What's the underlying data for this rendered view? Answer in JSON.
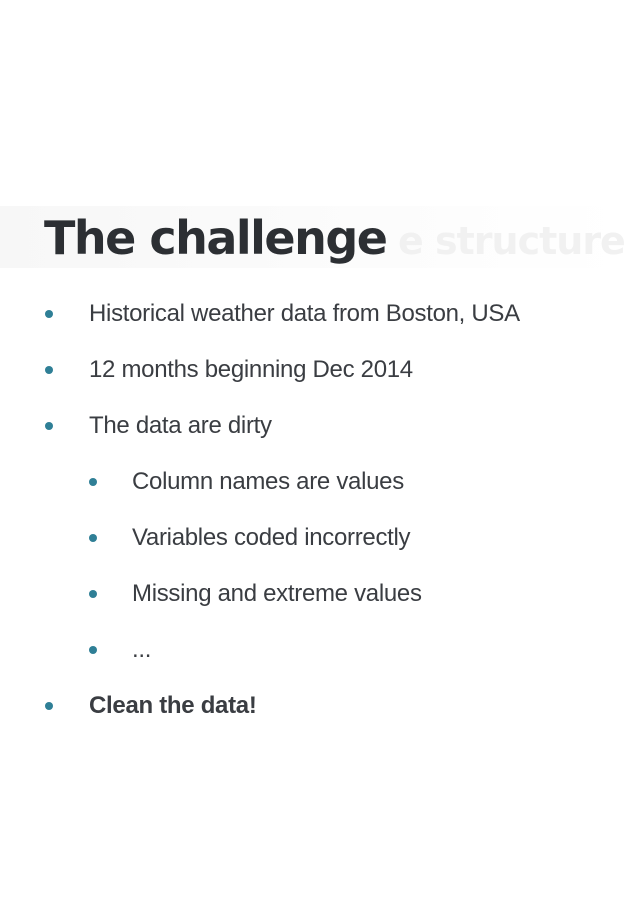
{
  "slide": {
    "title": "The challenge",
    "ghost_title": "e structure",
    "bullets": [
      {
        "text": "Historical weather data from Boston, USA",
        "level": 1,
        "bold": false
      },
      {
        "text": "12 months beginning Dec 2014",
        "level": 1,
        "bold": false
      },
      {
        "text": "The data are dirty",
        "level": 1,
        "bold": false
      },
      {
        "text": "Column names are values",
        "level": 2,
        "bold": false
      },
      {
        "text": "Variables coded incorrectly",
        "level": 2,
        "bold": false
      },
      {
        "text": "Missing and extreme values",
        "level": 2,
        "bold": false
      },
      {
        "text": "...",
        "level": 2,
        "bold": false
      },
      {
        "text": "Clean the data!",
        "level": 1,
        "bold": true
      }
    ]
  },
  "colors": {
    "bullet_dot": "#2f7f96",
    "text": "#3a3d42",
    "title": "#2c2f33"
  }
}
